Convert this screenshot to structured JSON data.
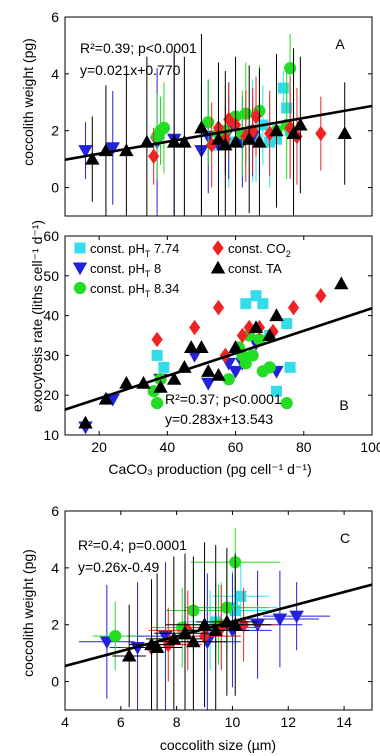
{
  "colors": {
    "const_pH_7_74": "#33dde8",
    "const_pH_8": "#2222dd",
    "const_pH_8_34": "#22dd22",
    "const_CO2": "#ee2222",
    "const_TA": "#000000",
    "regression": "#000000"
  },
  "chart_data": [
    {
      "panel": "A",
      "type": "scatter",
      "xlabel": "",
      "ylabel": "coccolith weight (pg)",
      "xlim": [
        10,
        100
      ],
      "ylim": [
        -1,
        6
      ],
      "yticks": [
        0,
        2,
        4,
        6
      ],
      "stats_line1": "R²=0.39; p<0.0001",
      "stats_line2": "y=0.021x+0.770",
      "regression": {
        "slope": 0.021,
        "intercept": 0.77
      },
      "series": [
        {
          "key": "const_pH_7_74",
          "marker": "square",
          "x": [
            55,
            58,
            62,
            65,
            66,
            68,
            70,
            72,
            74,
            75,
            76
          ],
          "y": [
            1.5,
            1.6,
            1.9,
            2.0,
            1.7,
            2.2,
            1.6,
            1.7,
            3.5,
            2.8,
            2.0
          ],
          "err": [
            1.2,
            1.6,
            1.3,
            1.8,
            1.5,
            1.4,
            1.6,
            1.7,
            0.6,
            0.8,
            1.5
          ]
        },
        {
          "key": "const_pH_8",
          "marker": "triangle-down",
          "x": [
            16,
            24,
            37,
            42,
            50,
            52,
            55,
            58,
            62,
            65
          ],
          "y": [
            1.3,
            1.4,
            1.6,
            1.7,
            1.3,
            1.8,
            1.5,
            2.0,
            1.6,
            1.8
          ],
          "err": [
            1.0,
            2.0,
            2.6,
            3.0,
            2.3,
            2.0,
            1.5,
            1.7,
            1.6,
            1.4
          ]
        },
        {
          "key": "const_pH_8_34",
          "marker": "circle",
          "x": [
            37,
            38,
            39,
            52,
            55,
            57,
            60,
            62,
            63,
            67,
            72,
            75,
            76
          ],
          "y": [
            1.8,
            2.0,
            2.1,
            2.3,
            1.9,
            2.0,
            2.5,
            1.9,
            2.6,
            2.7,
            2.0,
            2.2,
            4.2
          ],
          "err": [
            1.5,
            1.2,
            1.6,
            1.5,
            1.3,
            1.6,
            1.4,
            1.5,
            1.8,
            1.6,
            1.4,
            1.9,
            1.2
          ]
        },
        {
          "key": "const_CO2",
          "marker": "diamond",
          "x": [
            36,
            53,
            55,
            57,
            58,
            60,
            63,
            65,
            66,
            70,
            76,
            78,
            85
          ],
          "y": [
            1.1,
            1.5,
            2.1,
            1.7,
            2.4,
            2.2,
            1.8,
            2.0,
            2.5,
            1.9,
            2.1,
            1.8,
            1.9
          ],
          "err": [
            1.0,
            1.5,
            1.4,
            1.2,
            1.3,
            1.4,
            1.6,
            1.5,
            1.4,
            1.5,
            1.8,
            1.7,
            1.3
          ]
        },
        {
          "key": "const_TA",
          "marker": "triangle-up",
          "x": [
            18,
            22,
            28,
            34,
            42,
            45,
            50,
            55,
            57,
            60,
            64,
            67,
            72,
            77,
            79,
            92
          ],
          "y": [
            1.0,
            1.3,
            1.3,
            1.6,
            1.6,
            1.6,
            2.1,
            1.7,
            1.5,
            1.6,
            1.7,
            1.6,
            2.0,
            1.9,
            2.2,
            1.9
          ],
          "err": [
            1.5,
            2.3,
            2.7,
            3.0,
            3.2,
            3.0,
            3.3,
            2.7,
            2.6,
            3.0,
            2.6,
            2.6,
            2.7,
            3.0,
            2.4,
            1.8
          ]
        }
      ]
    },
    {
      "panel": "B",
      "type": "scatter",
      "xlabel": "CaCO₃ production (pg cell⁻¹ d⁻¹)",
      "ylabel": "exocytosis rate (liths cell⁻¹ d⁻¹)",
      "xlim": [
        10,
        100
      ],
      "ylim": [
        10,
        60
      ],
      "xticks": [
        20,
        40,
        60,
        80,
        100
      ],
      "yticks": [
        10,
        20,
        30,
        40,
        50,
        60
      ],
      "stats_line1": "R²=0.37; p<0.0001",
      "stats_line2": "y=0.283x+13.543",
      "regression": {
        "slope": 0.283,
        "intercept": 13.543
      },
      "series": [
        {
          "key": "const_pH_7_74",
          "marker": "square",
          "x": [
            37,
            39,
            63,
            66,
            68,
            70,
            72,
            75,
            76
          ],
          "y": [
            30,
            27,
            43,
            45,
            43,
            35,
            21,
            38,
            27
          ]
        },
        {
          "key": "const_pH_8",
          "marker": "triangle-down",
          "x": [
            16,
            24,
            38,
            48,
            52,
            58,
            60,
            62,
            66,
            72
          ],
          "y": [
            12,
            19,
            24,
            30,
            23,
            28,
            26,
            28,
            33,
            26
          ]
        },
        {
          "key": "const_pH_8_34",
          "marker": "circle",
          "x": [
            36,
            37,
            38,
            58,
            61,
            62,
            63,
            64,
            65,
            67,
            68,
            70,
            75
          ],
          "y": [
            21,
            18,
            24,
            24,
            32,
            30,
            28,
            35,
            30,
            34,
            26,
            27,
            18
          ]
        },
        {
          "key": "const_CO2",
          "marker": "diamond",
          "x": [
            37,
            48,
            55,
            57,
            62,
            64,
            67,
            71,
            77,
            85
          ],
          "y": [
            34,
            37,
            42,
            30,
            35,
            37,
            37,
            36,
            42,
            45
          ]
        },
        {
          "key": "const_TA",
          "marker": "triangle-up",
          "x": [
            16,
            22,
            28,
            33,
            38,
            42,
            45,
            47,
            50,
            52,
            55,
            60,
            66,
            70,
            72,
            91
          ],
          "y": [
            13,
            19,
            23,
            23,
            22,
            24,
            27,
            32,
            32,
            26,
            25,
            32,
            37,
            35,
            40,
            48
          ]
        }
      ],
      "legend": [
        {
          "key": "const_pH_7_74",
          "marker": "square",
          "pre": "const. pH",
          "sub": "T",
          "post": " 7.74"
        },
        {
          "key": "const_CO2",
          "marker": "diamond",
          "pre": "const. CO",
          "sub": "2",
          "post": ""
        },
        {
          "key": "const_pH_8",
          "marker": "triangle-down",
          "pre": "const. pH",
          "sub": "T",
          "post": " 8"
        },
        {
          "key": "const_TA",
          "marker": "triangle-up",
          "pre": "const. TA",
          "sub": "",
          "post": ""
        },
        {
          "key": "const_pH_8_34",
          "marker": "circle",
          "pre": "const. pH",
          "sub": "T",
          "post": " 8.34"
        }
      ]
    },
    {
      "panel": "C",
      "type": "scatter",
      "xlabel": "coccolith size (µm)",
      "ylabel": "coccolith weight (pg)",
      "xlim": [
        4,
        15
      ],
      "ylim": [
        -1,
        6
      ],
      "xticks": [
        4,
        6,
        8,
        10,
        12,
        14
      ],
      "yticks": [
        0,
        2,
        4,
        6
      ],
      "stats_line1": "R²=0.4; p=0.0001",
      "stats_line2": "y=0.26x-0.49",
      "regression": {
        "slope": 0.26,
        "intercept": -0.49
      },
      "series": [
        {
          "key": "const_pH_7_74",
          "marker": "square",
          "x": [
            9.2,
            9.6,
            10.0,
            10.3,
            10.1,
            9.4
          ],
          "y": [
            1.8,
            2.0,
            2.6,
            3.0,
            2.5,
            2.1
          ],
          "yerr": [
            1.4,
            1.5,
            1.3,
            1.1,
            1.2,
            1.4
          ],
          "xerr": [
            1.2,
            1.5,
            1.6,
            1.0,
            1.3,
            1.2
          ]
        },
        {
          "key": "const_pH_8",
          "marker": "triangle-down",
          "x": [
            5.5,
            6.6,
            7.6,
            9.1,
            10.0,
            10.9,
            11.7,
            12.3
          ],
          "y": [
            1.4,
            1.2,
            1.6,
            1.4,
            1.8,
            2.0,
            2.2,
            2.3
          ],
          "yerr": [
            2.0,
            2.3,
            2.6,
            2.4,
            2.0,
            1.9,
            1.7,
            1.2
          ],
          "xerr": [
            1.0,
            1.0,
            1.4,
            1.2,
            1.4,
            1.6,
            1.4,
            1.2
          ]
        },
        {
          "key": "const_pH_8_34",
          "marker": "circle",
          "x": [
            5.8,
            8.2,
            8.6,
            9.8,
            10.1,
            9.5
          ],
          "y": [
            1.6,
            1.9,
            2.5,
            2.6,
            4.2,
            2.0
          ],
          "yerr": [
            1.2,
            1.4,
            1.5,
            1.6,
            1.2,
            1.4
          ],
          "xerr": [
            0.8,
            1.1,
            1.0,
            1.5,
            1.6,
            1.2
          ]
        },
        {
          "key": "const_CO2",
          "marker": "diamond",
          "x": [
            7.1,
            7.7,
            8.4,
            9.0,
            9.6,
            10.4
          ],
          "y": [
            1.2,
            1.3,
            1.8,
            1.6,
            1.9,
            2.0
          ],
          "yerr": [
            1.1,
            1.3,
            1.4,
            1.3,
            1.5,
            1.3
          ],
          "xerr": [
            1.0,
            1.2,
            1.4,
            1.3,
            1.4,
            1.2
          ]
        },
        {
          "key": "const_TA",
          "marker": "triangle-up",
          "x": [
            6.3,
            7.1,
            7.3,
            7.9,
            8.3,
            8.6,
            9.0,
            9.4,
            9.8,
            10.1
          ],
          "y": [
            0.9,
            1.3,
            1.2,
            1.5,
            1.7,
            1.4,
            2.0,
            1.8,
            2.1,
            2.0
          ],
          "yerr": [
            1.8,
            2.3,
            2.6,
            2.9,
            2.8,
            3.0,
            2.9,
            3.0,
            2.6,
            2.5
          ],
          "xerr": [
            0.6,
            0.8,
            0.9,
            1.0,
            1.1,
            1.2,
            1.4,
            1.2,
            1.1,
            1.3
          ]
        }
      ]
    }
  ]
}
